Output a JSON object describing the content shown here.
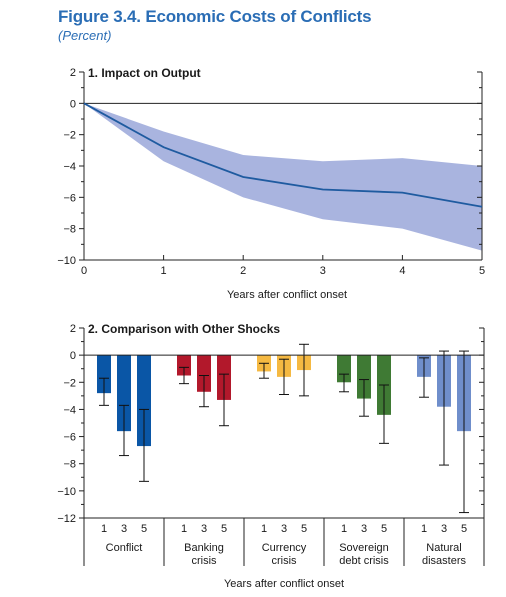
{
  "figure": {
    "title": "Figure 3.4.  Economic Costs of Conflicts",
    "subtitle": "(Percent)"
  },
  "chart_data": [
    {
      "type": "line",
      "title": "1. Impact on Output",
      "x": [
        0,
        1,
        2,
        3,
        4,
        5
      ],
      "series": [
        {
          "values": [
            0,
            -2.8,
            -4.7,
            -5.5,
            -5.7,
            -6.6
          ],
          "color": "#1f5ba0"
        }
      ],
      "band": {
        "lower": [
          0,
          -3.7,
          -6.0,
          -7.4,
          -8.0,
          -9.4
        ],
        "upper": [
          0,
          -1.8,
          -3.3,
          -3.7,
          -3.5,
          -4.0
        ],
        "color": "#a9b4df"
      },
      "xticks": [
        "0",
        "1",
        "2",
        "3",
        "4",
        "5"
      ],
      "yticks": [
        "2",
        "0",
        "−2",
        "−4",
        "−6",
        "−8",
        "−10"
      ],
      "xlim": [
        0,
        5
      ],
      "ylim": [
        -10,
        2
      ],
      "xlabel": "Years after conflict onset",
      "ylabel": "",
      "grid": false
    },
    {
      "type": "bar",
      "title": "2. Comparison with Other Shocks",
      "groups": [
        {
          "name": "Conflict",
          "color": "#0a56a6",
          "categories": [
            "1",
            "3",
            "5"
          ],
          "values": [
            -2.8,
            -5.6,
            -6.7
          ],
          "err_low": [
            -3.7,
            -7.4,
            -9.3
          ],
          "err_high": [
            -1.7,
            -3.7,
            -4.0
          ]
        },
        {
          "name": "Banking crisis",
          "color": "#b2182b",
          "categories": [
            "1",
            "3",
            "5"
          ],
          "values": [
            -1.5,
            -2.7,
            -3.3
          ],
          "err_low": [
            -2.1,
            -3.8,
            -5.2
          ],
          "err_high": [
            -0.9,
            -1.5,
            -1.4
          ]
        },
        {
          "name": "Currency crisis",
          "color": "#f5b942",
          "categories": [
            "1",
            "3",
            "5"
          ],
          "values": [
            -1.2,
            -1.6,
            -1.1
          ],
          "err_low": [
            -1.7,
            -2.9,
            -3.0
          ],
          "err_high": [
            -0.6,
            -0.3,
            0.8
          ]
        },
        {
          "name": "Sovereign debt crisis",
          "color": "#3f7a34",
          "categories": [
            "1",
            "3",
            "5"
          ],
          "values": [
            -2.0,
            -3.2,
            -4.4
          ],
          "err_low": [
            -2.7,
            -4.5,
            -6.5
          ],
          "err_high": [
            -1.4,
            -1.8,
            -2.2
          ]
        },
        {
          "name": "Natural disasters",
          "color": "#6f8ecb",
          "categories": [
            "1",
            "3",
            "5"
          ],
          "values": [
            -1.6,
            -3.8,
            -5.6
          ],
          "err_low": [
            -3.1,
            -8.1,
            -11.6
          ],
          "err_high": [
            -0.2,
            0.3,
            0.3
          ]
        }
      ],
      "group_labels": [
        [
          "Conflict"
        ],
        [
          "Banking",
          "crisis"
        ],
        [
          "Currency",
          "crisis"
        ],
        [
          "Sovereign",
          "debt crisis"
        ],
        [
          "Natural",
          "disasters"
        ]
      ],
      "yticks": [
        "2",
        "0",
        "−2",
        "−4",
        "−6",
        "−8",
        "−10",
        "−12"
      ],
      "ylim": [
        -12,
        2
      ],
      "xlabel": "Years after conflict onset",
      "ylabel": "",
      "grid": false
    }
  ]
}
